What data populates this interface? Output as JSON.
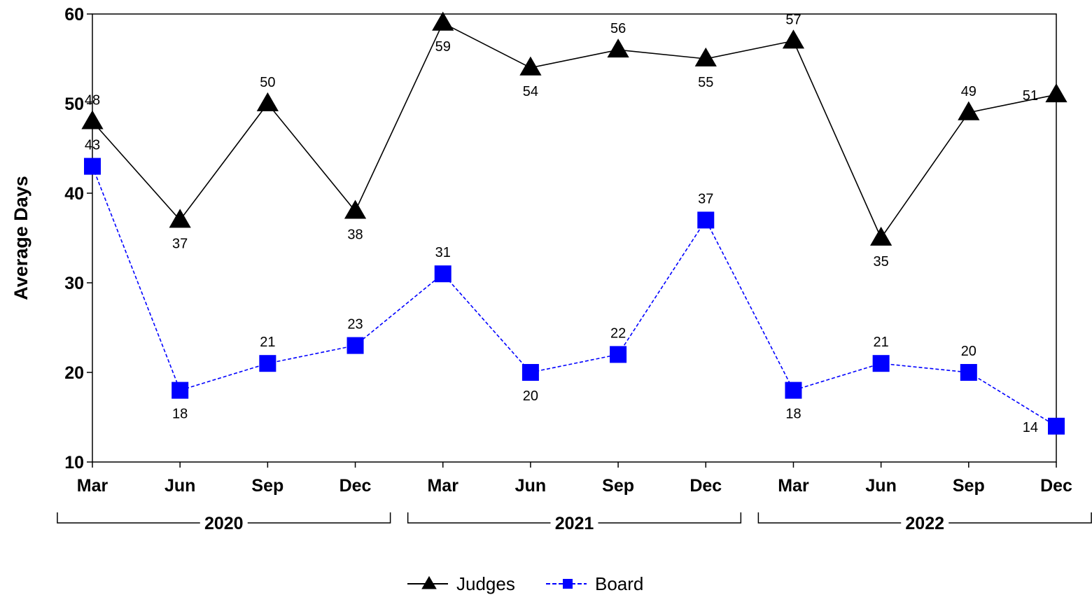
{
  "chart_data": {
    "type": "line",
    "title": "",
    "xlabel": "",
    "ylabel": "Average Days",
    "ylim": [
      10,
      60
    ],
    "yticks": [
      10,
      20,
      30,
      40,
      50,
      60
    ],
    "categories": [
      "Mar",
      "Jun",
      "Sep",
      "Dec",
      "Mar",
      "Jun",
      "Sep",
      "Dec",
      "Mar",
      "Jun",
      "Sep",
      "Dec"
    ],
    "groups": [
      {
        "label": "2020",
        "start": 0,
        "end": 3
      },
      {
        "label": "2021",
        "start": 4,
        "end": 7
      },
      {
        "label": "2022",
        "start": 8,
        "end": 11
      }
    ],
    "grid": false,
    "legend": "bottom",
    "series": [
      {
        "name": "Judges",
        "color": "#000000",
        "marker": "triangle",
        "dash": "solid",
        "values": [
          48,
          37,
          50,
          38,
          59,
          54,
          56,
          55,
          57,
          35,
          49,
          51
        ],
        "label_positions": [
          "above",
          "below",
          "above",
          "below",
          "below",
          "below",
          "above",
          "below",
          "above",
          "below",
          "above",
          "left"
        ]
      },
      {
        "name": "Board",
        "color": "#0000ff",
        "marker": "square",
        "dash": "dashed",
        "values": [
          43,
          18,
          21,
          23,
          31,
          20,
          22,
          37,
          18,
          21,
          20,
          14
        ],
        "label_positions": [
          "above",
          "below",
          "above",
          "above",
          "above",
          "below",
          "above",
          "above",
          "below",
          "above",
          "above",
          "left"
        ]
      }
    ]
  }
}
